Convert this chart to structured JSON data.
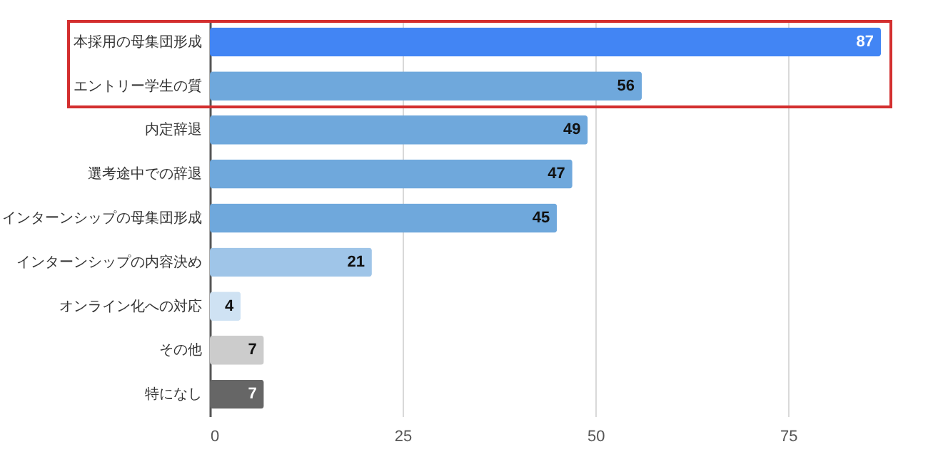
{
  "chart_data": {
    "type": "bar",
    "orientation": "horizontal",
    "categories": [
      "本採用の母集団形成",
      "エントリー学生の質",
      "内定辞退",
      "選考途中での辞退",
      "インターンシップの母集団形成",
      "インターンシップの内容決め",
      "オンライン化への対応",
      "その他",
      "特になし"
    ],
    "values": [
      87,
      56,
      49,
      47,
      45,
      21,
      4,
      7,
      7
    ],
    "colors": [
      "#4285f4",
      "#6fa8dc",
      "#6fa8dc",
      "#6fa8dc",
      "#6fa8dc",
      "#9fc5e8",
      "#cfe2f3",
      "#cccccc",
      "#666666"
    ],
    "xlim": [
      0,
      87
    ],
    "xticks": [
      0,
      25,
      50,
      75
    ],
    "grid": "x",
    "data_labels": true
  }
}
